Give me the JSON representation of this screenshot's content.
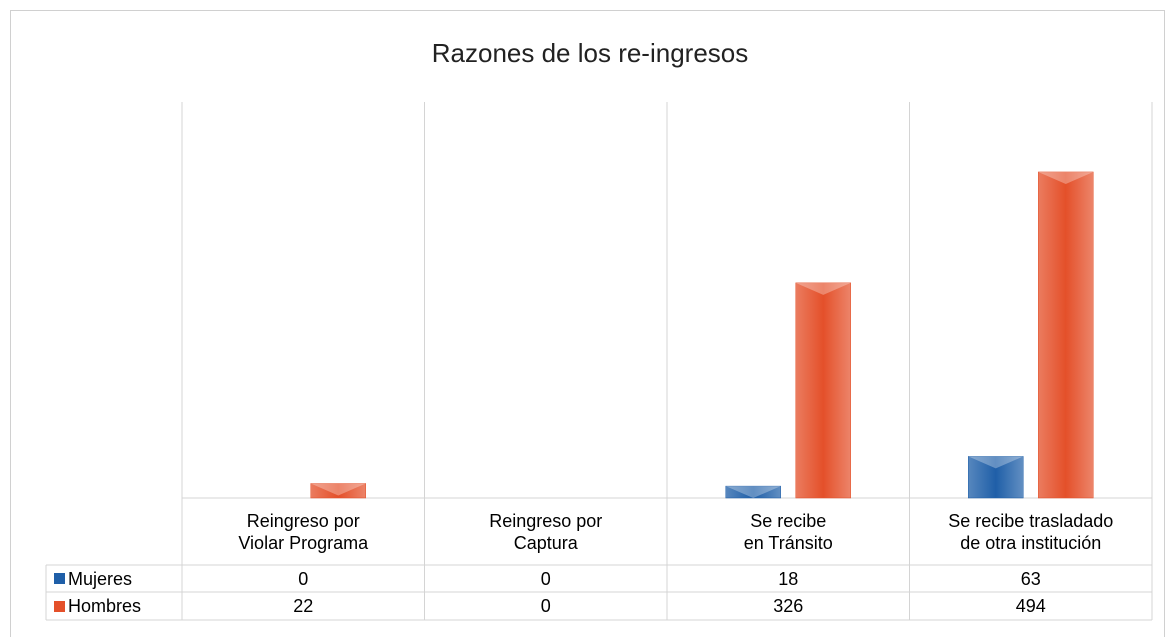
{
  "chart_data": {
    "type": "bar",
    "title": "Razones de los re-ingresos",
    "categories": [
      "Reingreso por\nViolar Programa",
      "Reingreso por\nCaptura",
      "Se recibe\nen Tránsito",
      "Se recibe trasladado\nde otra institución"
    ],
    "series": [
      {
        "name": "Mujeres",
        "color": "#1f5fa8",
        "values": [
          0,
          0,
          18,
          63
        ]
      },
      {
        "name": "Hombres",
        "color": "#e4502a",
        "values": [
          22,
          0,
          326,
          494
        ]
      }
    ],
    "ylim": [
      0,
      600
    ],
    "grid": true
  }
}
